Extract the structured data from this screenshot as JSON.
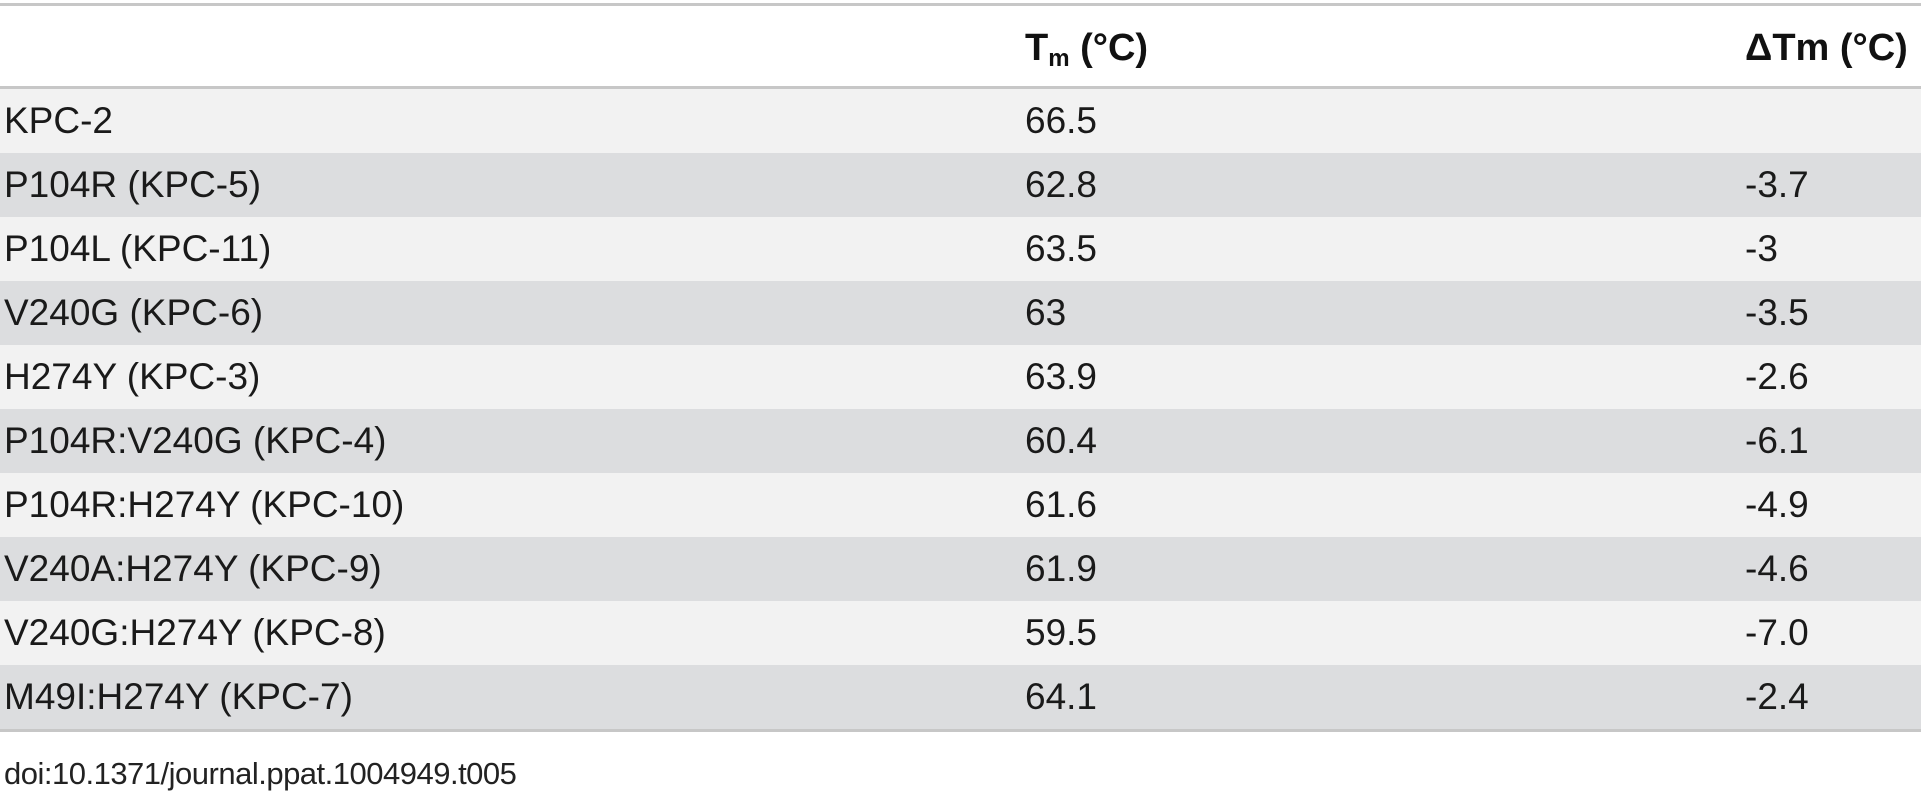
{
  "table": {
    "headers": {
      "col1": "",
      "col2_main": "T",
      "col2_sub": "m",
      "col2_unit": " (°C)",
      "col3": "ΔTm (°C)"
    },
    "rows": [
      {
        "variant": "KPC-2",
        "tm": "66.5",
        "dtm": ""
      },
      {
        "variant": "P104R (KPC-5)",
        "tm": "62.8",
        "dtm": "-3.7"
      },
      {
        "variant": "P104L (KPC-11)",
        "tm": "63.5",
        "dtm": "-3"
      },
      {
        "variant": "V240G (KPC-6)",
        "tm": "63",
        "dtm": "-3.5"
      },
      {
        "variant": "H274Y (KPC-3)",
        "tm": "63.9",
        "dtm": "-2.6"
      },
      {
        "variant": "P104R:V240G (KPC-4)",
        "tm": "60.4",
        "dtm": "-6.1"
      },
      {
        "variant": "P104R:H274Y (KPC-10)",
        "tm": "61.6",
        "dtm": "-4.9"
      },
      {
        "variant": "V240A:H274Y (KPC-9)",
        "tm": "61.9",
        "dtm": "-4.6"
      },
      {
        "variant": "V240G:H274Y (KPC-8)",
        "tm": "59.5",
        "dtm": "-7.0"
      },
      {
        "variant": "M49I:H274Y (KPC-7)",
        "tm": "64.1",
        "dtm": "-2.4"
      }
    ]
  },
  "footer": {
    "doi": "doi:10.1371/journal.ppat.1004949.t005"
  },
  "colors": {
    "row_light": "#f2f2f2",
    "row_dark": "#dcdddf",
    "rule": "#c7c7c7",
    "text": "#1a1a1a"
  }
}
